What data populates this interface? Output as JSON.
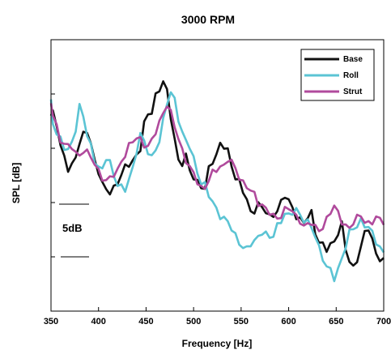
{
  "chart_data": {
    "type": "line",
    "title": "3000 RPM",
    "xlabel": "Frequency [Hz]",
    "ylabel": "SPL [dB]",
    "xlim": [
      350,
      700
    ],
    "xticks": [
      "350",
      "400",
      "450",
      "500",
      "550",
      "600",
      "650",
      "700"
    ],
    "yticks_labeled": false,
    "scale_annotation": "5dB",
    "legend_position": "top-right",
    "ylim": [
      0,
      50
    ],
    "series": [
      {
        "name": "Base",
        "color": "#111111",
        "x": [
          350,
          352,
          356,
          360,
          364,
          368,
          372,
          376,
          380,
          384,
          388,
          392,
          396,
          400,
          404,
          408,
          412,
          416,
          420,
          424,
          428,
          432,
          436,
          440,
          444,
          448,
          452,
          456,
          460,
          464,
          468,
          472,
          476,
          480,
          484,
          488,
          492,
          496,
          500,
          504,
          508,
          512,
          516,
          520,
          524,
          528,
          532,
          536,
          540,
          544,
          548,
          552,
          556,
          560,
          564,
          568,
          572,
          576,
          580,
          584,
          588,
          592,
          596,
          600,
          604,
          608,
          612,
          616,
          620,
          624,
          628,
          632,
          636,
          640,
          644,
          648,
          652,
          656,
          660,
          664,
          668,
          672,
          676,
          680,
          684,
          688,
          692,
          696,
          700
        ],
        "y": [
          36,
          37,
          35,
          30,
          28,
          26,
          27,
          29,
          31,
          32,
          33,
          31,
          28,
          26,
          23,
          22,
          22,
          23,
          24,
          25,
          26,
          27,
          28,
          29,
          30,
          34,
          36,
          37,
          40,
          41,
          42,
          40,
          36,
          32,
          28,
          27,
          28,
          26,
          25,
          24,
          23,
          22,
          26,
          28,
          29,
          31,
          30,
          29,
          27,
          25,
          24,
          22,
          20,
          18,
          19,
          20,
          19,
          18,
          17,
          18,
          19,
          20,
          21,
          20,
          19,
          18,
          17,
          16,
          17,
          18,
          15,
          13,
          12,
          11,
          12,
          13,
          15,
          16,
          11,
          9,
          8,
          10,
          12,
          14,
          15,
          13,
          11,
          10,
          9
        ]
      },
      {
        "name": "Roll",
        "color": "#5bc4d4",
        "x": [
          350,
          352,
          356,
          360,
          364,
          368,
          372,
          376,
          380,
          384,
          388,
          392,
          396,
          400,
          404,
          408,
          412,
          416,
          420,
          424,
          428,
          432,
          436,
          440,
          444,
          448,
          452,
          456,
          460,
          464,
          468,
          472,
          476,
          480,
          484,
          488,
          492,
          496,
          500,
          504,
          508,
          512,
          516,
          520,
          524,
          528,
          532,
          536,
          540,
          544,
          548,
          552,
          556,
          560,
          564,
          568,
          572,
          576,
          580,
          584,
          588,
          592,
          596,
          600,
          604,
          608,
          612,
          616,
          620,
          624,
          628,
          632,
          636,
          640,
          644,
          648,
          652,
          656,
          660,
          664,
          668,
          672,
          676,
          680,
          684,
          688,
          692,
          696,
          700
        ],
        "y": [
          38,
          35,
          33,
          32,
          30,
          29,
          31,
          34,
          38,
          36,
          32,
          30,
          28,
          27,
          26,
          28,
          27,
          25,
          24,
          23,
          22,
          24,
          26,
          30,
          33,
          31,
          29,
          28,
          30,
          32,
          35,
          38,
          40,
          39,
          36,
          33,
          31,
          30,
          28,
          26,
          24,
          23,
          21,
          20,
          19,
          18,
          17,
          16,
          15,
          14,
          13,
          12,
          11,
          12,
          13,
          14,
          15,
          14,
          13,
          14,
          16,
          17,
          18,
          17,
          18,
          19,
          18,
          17,
          16,
          15,
          14,
          12,
          10,
          8,
          7,
          6,
          8,
          10,
          12,
          14,
          15,
          16,
          17,
          16,
          15,
          14,
          13,
          12,
          11
        ]
      },
      {
        "name": "Strut",
        "color": "#b04a9c",
        "x": [
          350,
          352,
          356,
          360,
          364,
          368,
          372,
          376,
          380,
          384,
          388,
          392,
          396,
          400,
          404,
          408,
          412,
          416,
          420,
          424,
          428,
          432,
          436,
          440,
          444,
          448,
          452,
          456,
          460,
          464,
          468,
          472,
          476,
          480,
          484,
          488,
          492,
          496,
          500,
          504,
          508,
          512,
          516,
          520,
          524,
          528,
          532,
          536,
          540,
          544,
          548,
          552,
          556,
          560,
          564,
          568,
          572,
          576,
          580,
          584,
          588,
          592,
          596,
          600,
          604,
          608,
          612,
          616,
          620,
          624,
          628,
          632,
          636,
          640,
          644,
          648,
          652,
          656,
          660,
          664,
          668,
          672,
          676,
          680,
          684,
          688,
          692,
          696,
          700
        ],
        "y": [
          38,
          36,
          34,
          32,
          31,
          30,
          30,
          29,
          29,
          30,
          29,
          28,
          27,
          26,
          25,
          24,
          24,
          25,
          26,
          28,
          29,
          30,
          31,
          32,
          32,
          31,
          30,
          31,
          33,
          35,
          37,
          38,
          36,
          34,
          32,
          30,
          28,
          26,
          25,
          24,
          23,
          23,
          24,
          25,
          26,
          27,
          27,
          28,
          27,
          26,
          25,
          24,
          23,
          22,
          21,
          20,
          20,
          19,
          18,
          17,
          17,
          18,
          19,
          19,
          18,
          17,
          17,
          16,
          16,
          16,
          15,
          15,
          16,
          17,
          18,
          19,
          18,
          17,
          16,
          15,
          16,
          17,
          18,
          17,
          16,
          16,
          17,
          17,
          17
        ]
      }
    ]
  }
}
